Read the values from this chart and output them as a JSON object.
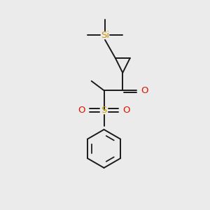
{
  "background_color": "#ebebeb",
  "bond_color": "#1a1a1a",
  "si_color": "#c8960c",
  "o_color": "#dd1100",
  "s_color": "#ccaa00",
  "line_width": 1.4,
  "fig_width": 3.0,
  "fig_height": 3.0,
  "xlim": [
    0,
    10
  ],
  "ylim": [
    0,
    10
  ],
  "si_label": "Si",
  "s_label": "S",
  "o_label": "O"
}
